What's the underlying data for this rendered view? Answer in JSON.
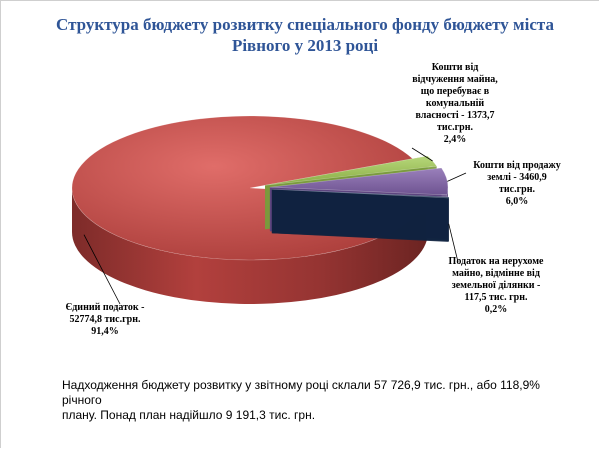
{
  "chart_data": {
    "type": "pie",
    "title_line1": "Структура бюджету розвитку спеціального фонду бюджету міста",
    "title_line2": "Рівного у 2013 році",
    "slices": [
      {
        "value": 52774.8,
        "percent": 91.4,
        "color": "#be4b48",
        "label": [
          "Єдиний податок -",
          "52774,8 тис.грн.",
          "91,4%"
        ]
      },
      {
        "value": 1373.7,
        "percent": 2.4,
        "color": "#98b954",
        "label": [
          "Кошти від",
          "відчуження майна,",
          "що перебуває в",
          "комунальній",
          "власності - 1373,7",
          "тис.грн.",
          "2,4%"
        ]
      },
      {
        "value": 3460.9,
        "percent": 6.0,
        "color": "#7f63a0",
        "label": [
          "Кошти від продажу",
          "землі - 3460,9",
          "тис.грн.",
          "6,0%"
        ]
      },
      {
        "value": 117.5,
        "percent": 0.2,
        "color": "#1f3864",
        "label": [
          "Податок на нерухоме",
          "майно, відмінне від",
          "земельної ділянки -",
          "117,5 тис. грн.",
          "0,2%"
        ]
      }
    ]
  },
  "note": {
    "line1": "Надходження бюджету розвитку у звітному році склали 57 726,9 тис. грн., або 118,9% річного",
    "line2": "плану. Понад план надійшло 9 191,3 тис. грн."
  }
}
